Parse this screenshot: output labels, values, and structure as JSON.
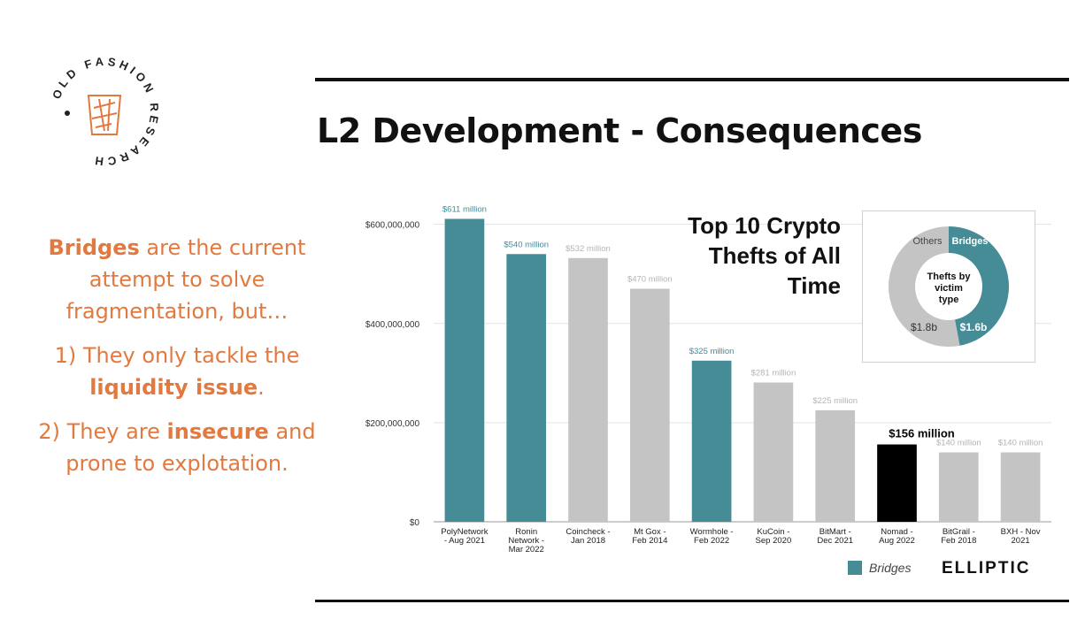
{
  "slide": {
    "title": "L2 Development - Consequences",
    "logo_text": "OLD FASHION RESEARCH",
    "intro_bold": "Bridges",
    "intro_rest": " are the current attempt to solve fragmentation, but…",
    "point1_pre": "1) They only tackle the ",
    "point1_bold": "liquidity issue",
    "point1_post": ".",
    "point2_pre": "2) They are ",
    "point2_bold": "insecure",
    "point2_post": " and prone to explotation."
  },
  "colors": {
    "bridge": "#458c97",
    "other": "#c4c4c4",
    "highlight": "#000000",
    "accent_text": "#e2793f"
  },
  "chart_data": {
    "type": "bar",
    "title": "Top 10 Crypto Thefts of All Time",
    "categories": [
      "PolyNetwork - Aug 2021",
      "Ronin Network - Mar 2022",
      "Coincheck - Jan 2018",
      "Mt Gox - Feb 2014",
      "Wormhole - Feb 2022",
      "KuCoin - Sep 2020",
      "BitMart - Dec 2021",
      "Nomad - Aug 2022",
      "BitGrail - Feb 2018",
      "BXH - Nov 2021"
    ],
    "category_lines": [
      [
        "PolyNetwork",
        "- Aug 2021"
      ],
      [
        "Ronin",
        "Network -",
        "Mar 2022"
      ],
      [
        "Coincheck -",
        "Jan 2018"
      ],
      [
        "Mt Gox -",
        "Feb 2014"
      ],
      [
        "Wormhole -",
        "Feb 2022"
      ],
      [
        "KuCoin -",
        "Sep 2020"
      ],
      [
        "BitMart -",
        "Dec 2021"
      ],
      [
        "Nomad -",
        "Aug 2022"
      ],
      [
        "BitGrail -",
        "Feb 2018"
      ],
      [
        "BXH - Nov",
        "2021"
      ]
    ],
    "values": [
      611000000,
      540000000,
      532000000,
      470000000,
      325000000,
      281000000,
      225000000,
      156000000,
      140000000,
      140000000
    ],
    "value_labels": [
      "$611 million",
      "$540 million",
      "$532 million",
      "$470 million",
      "$325 million",
      "$281 million",
      "$225 million",
      "$156 million",
      "$140 million",
      "$140 million"
    ],
    "kind": [
      "bridge",
      "bridge",
      "other",
      "other",
      "bridge",
      "other",
      "other",
      "highlight",
      "other",
      "other"
    ],
    "ylim": [
      0,
      660000000
    ],
    "yticks": [
      0,
      200000000,
      400000000,
      600000000
    ],
    "ytick_labels": [
      "$0",
      "$200,000,000",
      "$400,000,000",
      "$600,000,000"
    ],
    "grid": true,
    "legend": [
      {
        "name": "Bridges",
        "color": "#458c97"
      }
    ],
    "brand": "ELLIPTIC",
    "inset": {
      "type": "pie",
      "title": "Thefts by victim type",
      "title_lines": [
        "Thefts by",
        "victim",
        "type"
      ],
      "slices": [
        {
          "name": "Bridges",
          "value": 1.6,
          "label": "$1.6b",
          "color": "#458c97"
        },
        {
          "name": "Others",
          "value": 1.8,
          "label": "$1.8b",
          "color": "#c4c4c4"
        }
      ]
    }
  }
}
